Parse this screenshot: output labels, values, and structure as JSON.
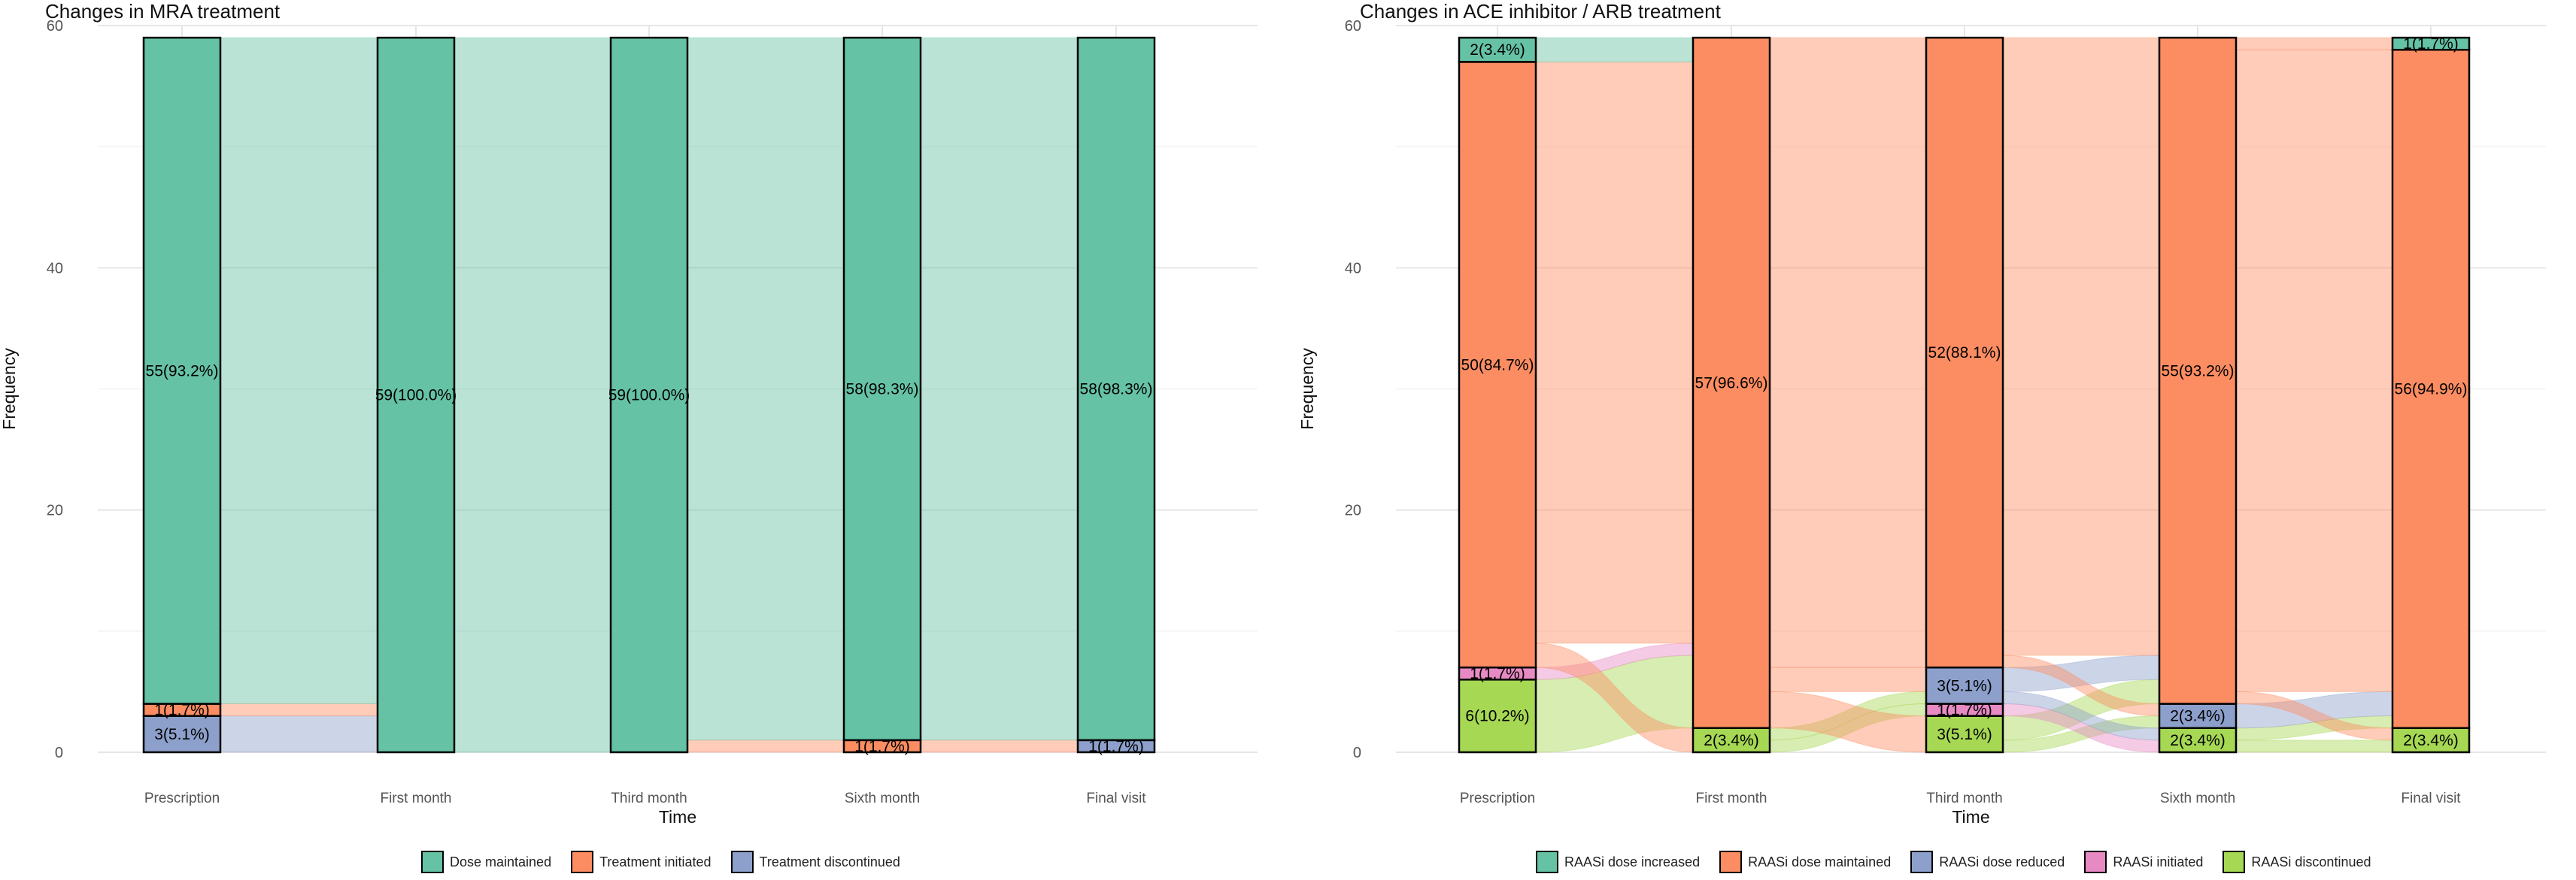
{
  "colors": {
    "background": "#ffffff",
    "grid_major": "#e6e6e6",
    "grid_minor": "#f2f2f2",
    "bar_outline": "#000000",
    "text": "#222222"
  },
  "chart_data": [
    {
      "type": "alluvial",
      "title": "Changes in MRA treatment",
      "xlabel": "Time",
      "ylabel": "Frequency",
      "ylim": [
        0,
        60
      ],
      "yticks": [
        0,
        20,
        40,
        60
      ],
      "grid": true,
      "legend_position": "bottom",
      "categories": [
        "Prescription",
        "First month",
        "Third month",
        "Sixth month",
        "Final visit"
      ],
      "states": [
        {
          "name": "Dose maintained",
          "color": "#66C2A5"
        },
        {
          "name": "Treatment initiated",
          "color": "#FC8D62"
        },
        {
          "name": "Treatment discontinued",
          "color": "#8DA0CB"
        }
      ],
      "stacks": [
        [
          {
            "state": "Treatment discontinued",
            "count": 3,
            "label": "3(5.1%)"
          },
          {
            "state": "Treatment initiated",
            "count": 1,
            "label": "1(1.7%)"
          },
          {
            "state": "Dose maintained",
            "count": 55,
            "label": "55(93.2%)"
          }
        ],
        [
          {
            "state": "Dose maintained",
            "count": 59,
            "label": "59(100.0%)"
          }
        ],
        [
          {
            "state": "Dose maintained",
            "count": 59,
            "label": "59(100.0%)"
          }
        ],
        [
          {
            "state": "Treatment initiated",
            "count": 1,
            "label": "1(1.7%)"
          },
          {
            "state": "Dose maintained",
            "count": 58,
            "label": "58(98.3%)"
          }
        ],
        [
          {
            "state": "Treatment discontinued",
            "count": 1,
            "label": "1(1.7%)"
          },
          {
            "state": "Dose maintained",
            "count": 58,
            "label": "58(98.3%)"
          }
        ]
      ],
      "flows": [
        [
          {
            "from": "Treatment discontinued",
            "to": "Dose maintained",
            "count": 3,
            "color": "Treatment discontinued"
          },
          {
            "from": "Treatment initiated",
            "to": "Dose maintained",
            "count": 1,
            "color": "Treatment initiated"
          },
          {
            "from": "Dose maintained",
            "to": "Dose maintained",
            "count": 55,
            "color": "Dose maintained"
          }
        ],
        [
          {
            "from": "Dose maintained",
            "to": "Dose maintained",
            "count": 59,
            "color": "Dose maintained"
          }
        ],
        [
          {
            "from": "Dose maintained",
            "to": "Treatment initiated",
            "count": 1,
            "color": "Treatment initiated"
          },
          {
            "from": "Dose maintained",
            "to": "Dose maintained",
            "count": 58,
            "color": "Dose maintained"
          }
        ],
        [
          {
            "from": "Treatment initiated",
            "to": "Treatment discontinued",
            "count": 1,
            "color": "Treatment initiated"
          },
          {
            "from": "Dose maintained",
            "to": "Dose maintained",
            "count": 58,
            "color": "Dose maintained"
          }
        ]
      ]
    },
    {
      "type": "alluvial",
      "title": "Changes in ACE inhibitor / ARB treatment",
      "xlabel": "Time",
      "ylabel": "Frequency",
      "ylim": [
        0,
        60
      ],
      "yticks": [
        0,
        20,
        40,
        60
      ],
      "grid": true,
      "legend_position": "bottom",
      "categories": [
        "Prescription",
        "First month",
        "Third month",
        "Sixth month",
        "Final visit"
      ],
      "states": [
        {
          "name": "RAASi dose increased",
          "color": "#66C2A5"
        },
        {
          "name": "RAASi dose maintained",
          "color": "#FC8D62"
        },
        {
          "name": "RAASi dose reduced",
          "color": "#8DA0CB"
        },
        {
          "name": "RAASi initiated",
          "color": "#E78AC3"
        },
        {
          "name": "RAASi discontinued",
          "color": "#A6D854"
        }
      ],
      "stacks": [
        [
          {
            "state": "RAASi discontinued",
            "count": 6,
            "label": "6(10.2%)"
          },
          {
            "state": "RAASi initiated",
            "count": 1,
            "label": "1(1.7%)"
          },
          {
            "state": "RAASi dose maintained",
            "count": 50,
            "label": "50(84.7%)"
          },
          {
            "state": "RAASi dose increased",
            "count": 2,
            "label": "2(3.4%)"
          }
        ],
        [
          {
            "state": "RAASi discontinued",
            "count": 2,
            "label": "2(3.4%)"
          },
          {
            "state": "RAASi dose maintained",
            "count": 57,
            "label": "57(96.6%)"
          }
        ],
        [
          {
            "state": "RAASi discontinued",
            "count": 3,
            "label": "3(5.1%)"
          },
          {
            "state": "RAASi initiated",
            "count": 1,
            "label": "1(1.7%)"
          },
          {
            "state": "RAASi dose reduced",
            "count": 3,
            "label": "3(5.1%)"
          },
          {
            "state": "RAASi dose maintained",
            "count": 52,
            "label": "52(88.1%)"
          }
        ],
        [
          {
            "state": "RAASi discontinued",
            "count": 2,
            "label": "2(3.4%)"
          },
          {
            "state": "RAASi dose reduced",
            "count": 2,
            "label": "2(3.4%)"
          },
          {
            "state": "RAASi dose maintained",
            "count": 55,
            "label": "55(93.2%)"
          }
        ],
        [
          {
            "state": "RAASi discontinued",
            "count": 2,
            "label": "2(3.4%)"
          },
          {
            "state": "RAASi dose maintained",
            "count": 56,
            "label": "56(94.9%)"
          },
          {
            "state": "RAASi dose increased",
            "count": 1,
            "label": "1(1.7%)"
          }
        ]
      ],
      "flows": [
        [
          {
            "from": "RAASi discontinued",
            "to": "RAASi dose maintained",
            "count": 6,
            "color": "RAASi discontinued"
          },
          {
            "from": "RAASi initiated",
            "to": "RAASi dose maintained",
            "count": 1,
            "color": "RAASi initiated"
          },
          {
            "from": "RAASi dose maintained",
            "to": "RAASi discontinued",
            "count": 2,
            "color": "RAASi dose maintained"
          },
          {
            "from": "RAASi dose maintained",
            "to": "RAASi dose maintained",
            "count": 48,
            "color": "RAASi dose maintained"
          },
          {
            "from": "RAASi dose increased",
            "to": "RAASi dose maintained",
            "count": 2,
            "color": "RAASi dose increased"
          }
        ],
        [
          {
            "from": "RAASi discontinued",
            "to": "RAASi initiated",
            "count": 1,
            "color": "RAASi discontinued"
          },
          {
            "from": "RAASi discontinued",
            "to": "RAASi dose reduced",
            "count": 1,
            "color": "RAASi discontinued"
          },
          {
            "from": "RAASi dose maintained",
            "to": "RAASi discontinued",
            "count": 3,
            "color": "RAASi dose maintained"
          },
          {
            "from": "RAASi dose maintained",
            "to": "RAASi dose reduced",
            "count": 2,
            "color": "RAASi dose maintained"
          },
          {
            "from": "RAASi dose maintained",
            "to": "RAASi dose maintained",
            "count": 52,
            "color": "RAASi dose maintained"
          }
        ],
        [
          {
            "from": "RAASi discontinued",
            "to": "RAASi dose reduced",
            "count": 1,
            "color": "RAASi discontinued"
          },
          {
            "from": "RAASi discontinued",
            "to": "RAASi dose maintained",
            "count": 2,
            "color": "RAASi discontinued"
          },
          {
            "from": "RAASi initiated",
            "to": "RAASi discontinued",
            "count": 1,
            "color": "RAASi initiated"
          },
          {
            "from": "RAASi dose reduced",
            "to": "RAASi discontinued",
            "count": 1,
            "color": "RAASi dose reduced"
          },
          {
            "from": "RAASi dose reduced",
            "to": "RAASi dose maintained",
            "count": 2,
            "color": "RAASi dose reduced"
          },
          {
            "from": "RAASi dose maintained",
            "to": "RAASi dose reduced",
            "count": 1,
            "color": "RAASi dose maintained"
          },
          {
            "from": "RAASi dose maintained",
            "to": "RAASi dose maintained",
            "count": 51,
            "color": "RAASi dose maintained"
          }
        ],
        [
          {
            "from": "RAASi discontinued",
            "to": "RAASi discontinued",
            "count": 1,
            "color": "RAASi discontinued"
          },
          {
            "from": "RAASi discontinued",
            "to": "RAASi dose maintained",
            "count": 1,
            "color": "RAASi discontinued"
          },
          {
            "from": "RAASi dose reduced",
            "to": "RAASi dose maintained",
            "count": 2,
            "color": "RAASi dose reduced"
          },
          {
            "from": "RAASi dose maintained",
            "to": "RAASi discontinued",
            "count": 1,
            "color": "RAASi dose maintained"
          },
          {
            "from": "RAASi dose maintained",
            "to": "RAASi dose maintained",
            "count": 53,
            "color": "RAASi dose maintained"
          },
          {
            "from": "RAASi dose maintained",
            "to": "RAASi dose increased",
            "count": 1,
            "color": "RAASi dose maintained"
          }
        ]
      ]
    }
  ]
}
